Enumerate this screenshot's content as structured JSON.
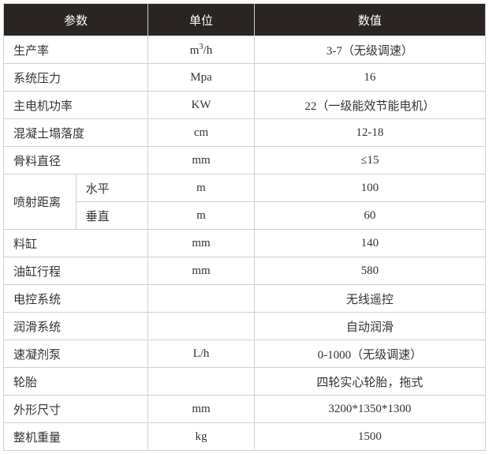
{
  "header": {
    "param": "参数",
    "unit": "单位",
    "value": "数值"
  },
  "col_widths": [
    "15%",
    "15%",
    "22%",
    "48%"
  ],
  "rows": [
    {
      "param": "生产率",
      "unit": "m³/h",
      "value": "3-7（无级调速）"
    },
    {
      "param": "系统压力",
      "unit": "Mpa",
      "value": "16"
    },
    {
      "param": "主电机功率",
      "unit": "KW",
      "value": "22（一级能效节能电机）"
    },
    {
      "param": "混凝土塌落度",
      "unit": "cm",
      "value": "12-18"
    },
    {
      "param": "骨料直径",
      "unit": "mm",
      "value": "≤15"
    },
    {
      "param": "喷射距离",
      "sub": [
        {
          "subparam": "水平",
          "unit": "m",
          "value": "100"
        },
        {
          "subparam": "垂直",
          "unit": "m",
          "value": "60"
        }
      ]
    },
    {
      "param": "料缸",
      "unit": "mm",
      "value": "140"
    },
    {
      "param": "油缸行程",
      "unit": "mm",
      "value": "580"
    },
    {
      "param": "电控系统",
      "unit": "",
      "value": "无线遥控"
    },
    {
      "param": "润滑系统",
      "unit": "",
      "value": "自动润滑"
    },
    {
      "param": "速凝剂泵",
      "unit": "L/h",
      "value": "0-1000（无级调速）"
    },
    {
      "param": "轮胎",
      "unit": "",
      "value": "四轮实心轮胎，拖式"
    },
    {
      "param": "外形尺寸",
      "unit": "mm",
      "value": "3200*1350*1300"
    },
    {
      "param": "整机重量",
      "unit": "kg",
      "value": "1500"
    }
  ]
}
